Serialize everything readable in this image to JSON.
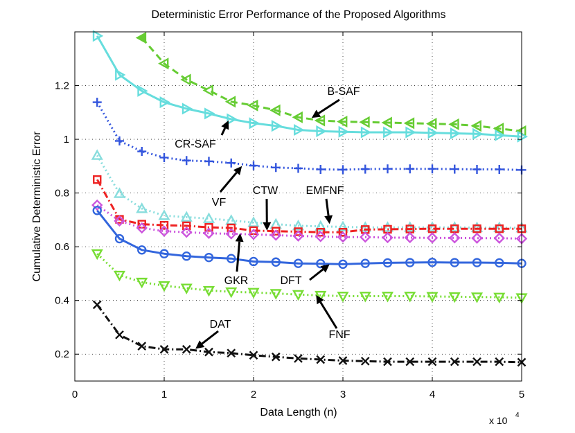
{
  "chart_data": {
    "type": "line",
    "title": "Deterministic Error Performance of the Proposed Algorithms",
    "xlabel": "Data Length (n)",
    "ylabel": "Cumulative Deterministic Error",
    "x_multiplier": "x 10",
    "x_multiplier_exp": "4",
    "xlim": [
      0,
      5
    ],
    "ylim": [
      0.1,
      1.4
    ],
    "grid": true,
    "x_ticks": [
      0,
      1,
      2,
      3,
      4,
      5
    ],
    "x_tick_labels": [
      "0",
      "1",
      "2",
      "3",
      "4",
      "5"
    ],
    "y_ticks": [
      0.2,
      0.4,
      0.6,
      0.8,
      1.0,
      1.2
    ],
    "y_tick_labels": [
      "0.2",
      "0.4",
      "0.6",
      "0.8",
      "1",
      "1.2"
    ],
    "series": [
      {
        "name": "B-SAF",
        "color": "#66cc33",
        "linestyle": "dash",
        "marker": "triangle-left",
        "filled_first": true,
        "x": [
          0.75,
          1.0,
          1.25,
          1.5,
          1.75,
          2.0,
          2.25,
          2.5,
          2.75,
          3.0,
          3.25,
          3.5,
          3.75,
          4.0,
          4.25,
          4.5,
          4.75,
          5.0
        ],
        "values": [
          1.378,
          1.282,
          1.222,
          1.182,
          1.14,
          1.126,
          1.108,
          1.082,
          1.07,
          1.066,
          1.064,
          1.062,
          1.06,
          1.058,
          1.056,
          1.05,
          1.04,
          1.03
        ]
      },
      {
        "name": "CR-SAF",
        "color": "#66dddd",
        "linestyle": "solid",
        "marker": "triangle-right",
        "x": [
          0.25,
          0.5,
          0.75,
          1.0,
          1.25,
          1.5,
          1.75,
          2.0,
          2.25,
          2.5,
          2.75,
          3.0,
          3.25,
          3.5,
          3.75,
          4.0,
          4.25,
          4.5,
          4.75,
          5.0
        ],
        "values": [
          1.385,
          1.24,
          1.18,
          1.138,
          1.114,
          1.096,
          1.075,
          1.06,
          1.05,
          1.035,
          1.03,
          1.028,
          1.026,
          1.026,
          1.026,
          1.024,
          1.022,
          1.02,
          1.015,
          1.01
        ]
      },
      {
        "name": "VF",
        "color": "#3355dd",
        "linestyle": "dot",
        "marker": "plus",
        "x": [
          0.25,
          0.5,
          0.75,
          1.0,
          1.25,
          1.5,
          1.75,
          2.0,
          2.25,
          2.5,
          2.75,
          3.0,
          3.25,
          3.5,
          3.75,
          4.0,
          4.25,
          4.5,
          4.75,
          5.0
        ],
        "values": [
          1.138,
          0.994,
          0.955,
          0.932,
          0.921,
          0.918,
          0.912,
          0.902,
          0.895,
          0.892,
          0.888,
          0.887,
          0.889,
          0.89,
          0.89,
          0.89,
          0.889,
          0.888,
          0.888,
          0.886
        ]
      },
      {
        "name": "EMFNF",
        "color": "#88dddd",
        "linestyle": "dot",
        "marker": "triangle-up",
        "x": [
          0.25,
          0.5,
          0.75,
          1.0,
          1.25,
          1.5,
          1.75,
          2.0,
          2.25,
          2.5,
          2.75,
          3.0,
          3.25,
          3.5,
          3.75,
          4.0,
          4.25,
          4.5,
          4.75,
          5.0
        ],
        "values": [
          0.94,
          0.798,
          0.742,
          0.716,
          0.71,
          0.705,
          0.698,
          0.69,
          0.684,
          0.678,
          0.676,
          0.674,
          0.672,
          0.672,
          0.672,
          0.672,
          0.672,
          0.671,
          0.671,
          0.67
        ]
      },
      {
        "name": "CTW",
        "color": "#ee2222",
        "linestyle": "dashdot",
        "marker": "square",
        "x": [
          0.25,
          0.5,
          0.75,
          1.0,
          1.25,
          1.5,
          1.75,
          2.0,
          2.25,
          2.5,
          2.75,
          3.0,
          3.25,
          3.5,
          3.75,
          4.0,
          4.25,
          4.5,
          4.75,
          5.0
        ],
        "values": [
          0.85,
          0.702,
          0.684,
          0.68,
          0.678,
          0.672,
          0.67,
          0.66,
          0.658,
          0.656,
          0.654,
          0.654,
          0.664,
          0.665,
          0.666,
          0.667,
          0.667,
          0.667,
          0.667,
          0.667
        ]
      },
      {
        "name": "GKR",
        "color": "#cc55dd",
        "linestyle": "dot",
        "marker": "diamond",
        "x": [
          0.25,
          0.5,
          0.75,
          1.0,
          1.25,
          1.5,
          1.75,
          2.0,
          2.25,
          2.5,
          2.75,
          3.0,
          3.25,
          3.5,
          3.75,
          4.0,
          4.25,
          4.5,
          4.75,
          5.0
        ],
        "values": [
          0.755,
          0.696,
          0.67,
          0.658,
          0.654,
          0.65,
          0.648,
          0.646,
          0.643,
          0.64,
          0.638,
          0.636,
          0.636,
          0.634,
          0.634,
          0.633,
          0.633,
          0.632,
          0.632,
          0.63
        ]
      },
      {
        "name": "DFT",
        "color": "#3366dd",
        "linestyle": "solid",
        "marker": "circle",
        "x": [
          0.25,
          0.5,
          0.75,
          1.0,
          1.25,
          1.5,
          1.75,
          2.0,
          2.25,
          2.5,
          2.75,
          3.0,
          3.25,
          3.5,
          3.75,
          4.0,
          4.25,
          4.5,
          4.75,
          5.0
        ],
        "values": [
          0.735,
          0.63,
          0.588,
          0.574,
          0.565,
          0.56,
          0.556,
          0.545,
          0.543,
          0.538,
          0.537,
          0.535,
          0.538,
          0.54,
          0.541,
          0.542,
          0.541,
          0.541,
          0.54,
          0.538
        ]
      },
      {
        "name": "FNF",
        "color": "#77dd33",
        "linestyle": "dot",
        "marker": "triangle-down",
        "x": [
          0.25,
          0.5,
          0.75,
          1.0,
          1.25,
          1.5,
          1.75,
          2.0,
          2.25,
          2.5,
          2.75,
          3.0,
          3.25,
          3.5,
          3.75,
          4.0,
          4.25,
          4.5,
          4.75,
          5.0
        ],
        "values": [
          0.574,
          0.494,
          0.468,
          0.455,
          0.446,
          0.437,
          0.432,
          0.43,
          0.426,
          0.422,
          0.419,
          0.416,
          0.416,
          0.416,
          0.416,
          0.415,
          0.414,
          0.413,
          0.412,
          0.41
        ]
      },
      {
        "name": "DAT",
        "color": "#111111",
        "linestyle": "dashdot",
        "marker": "x",
        "x": [
          0.25,
          0.5,
          0.75,
          1.0,
          1.25,
          1.5,
          1.75,
          2.0,
          2.25,
          2.5,
          2.75,
          3.0,
          3.25,
          3.5,
          3.75,
          4.0,
          4.25,
          4.5,
          4.75,
          5.0
        ],
        "values": [
          0.384,
          0.272,
          0.23,
          0.218,
          0.218,
          0.208,
          0.204,
          0.196,
          0.19,
          0.184,
          0.18,
          0.176,
          0.174,
          0.172,
          0.172,
          0.172,
          0.172,
          0.172,
          0.172,
          0.17
        ]
      }
    ],
    "annotations": [
      {
        "text": "B-SAF",
        "target_series": "B-SAF",
        "x": 2.65,
        "y": 1.08
      },
      {
        "text": "CR-SAF",
        "target_series": "CR-SAF",
        "x": 1.72,
        "y": 1.07
      },
      {
        "text": "VF",
        "target_series": "VF",
        "x": 1.87,
        "y": 0.9
      },
      {
        "text": "CTW",
        "target_series": "CTW",
        "x": 2.15,
        "y": 0.66
      },
      {
        "text": "EMFNF",
        "target_series": "EMFNF",
        "x": 2.85,
        "y": 0.685
      },
      {
        "text": "GKR",
        "target_series": "GKR",
        "x": 1.85,
        "y": 0.65
      },
      {
        "text": "DFT",
        "target_series": "DFT",
        "x": 2.85,
        "y": 0.535
      },
      {
        "text": "FNF",
        "target_series": "FNF",
        "x": 2.7,
        "y": 0.42
      },
      {
        "text": "DAT",
        "target_series": "DAT",
        "x": 1.35,
        "y": 0.22
      }
    ]
  }
}
